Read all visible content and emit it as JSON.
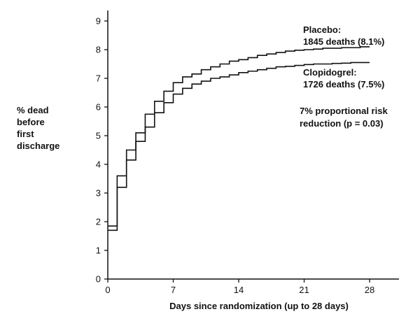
{
  "chart_data": {
    "type": "line",
    "title": "",
    "xlabel": "Days since randomization (up to 28 days)",
    "ylabel": [
      "% dead",
      "before",
      "first",
      "discharge"
    ],
    "xlim": [
      0,
      28
    ],
    "ylim": [
      0,
      9
    ],
    "xticks": [
      0,
      7,
      14,
      21,
      28
    ],
    "yticks": [
      0,
      1,
      2,
      3,
      4,
      5,
      6,
      7,
      8,
      9
    ],
    "grid": false,
    "step": true,
    "series": [
      {
        "name": "Placebo",
        "x": [
          0,
          1,
          2,
          3,
          4,
          5,
          6,
          7,
          8,
          9,
          10,
          11,
          12,
          13,
          14,
          15,
          16,
          17,
          18,
          19,
          20,
          21,
          22,
          23,
          24,
          25,
          26,
          27,
          28
        ],
        "y": [
          1.85,
          3.6,
          4.5,
          5.1,
          5.75,
          6.2,
          6.55,
          6.85,
          7.05,
          7.15,
          7.3,
          7.4,
          7.5,
          7.6,
          7.65,
          7.72,
          7.8,
          7.85,
          7.9,
          7.95,
          7.98,
          8.0,
          8.02,
          8.05,
          8.05,
          8.07,
          8.07,
          8.1,
          8.1
        ]
      },
      {
        "name": "Clopidogrel",
        "x": [
          0,
          1,
          2,
          3,
          4,
          5,
          6,
          7,
          8,
          9,
          10,
          11,
          12,
          13,
          14,
          15,
          16,
          17,
          18,
          19,
          20,
          21,
          22,
          23,
          24,
          25,
          26,
          27,
          28
        ],
        "y": [
          1.7,
          3.2,
          4.15,
          4.8,
          5.3,
          5.8,
          6.15,
          6.45,
          6.65,
          6.8,
          6.9,
          7.0,
          7.05,
          7.12,
          7.2,
          7.25,
          7.3,
          7.35,
          7.4,
          7.42,
          7.45,
          7.48,
          7.5,
          7.5,
          7.52,
          7.53,
          7.55,
          7.55,
          7.55
        ]
      }
    ],
    "annotations": [
      {
        "series": "Placebo",
        "lines": [
          "Placebo:",
          "1845 deaths (8.1%)"
        ]
      },
      {
        "series": "Clopidogrel",
        "lines": [
          "Clopidogrel:",
          "1726 deaths (7.5%)"
        ]
      },
      {
        "lines": [
          "7% proportional risk",
          "reduction (p = 0.03)"
        ]
      }
    ]
  }
}
